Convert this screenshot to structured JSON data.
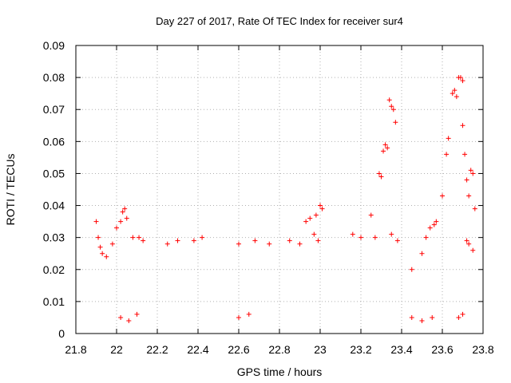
{
  "chart_data": {
    "type": "scatter",
    "title": "Day 227 of 2017, Rate Of TEC Index for receiver sur4",
    "xlabel": "GPS time / hours",
    "ylabel": "ROTI / TECUs",
    "xlim": [
      21.8,
      23.8
    ],
    "ylim": [
      0,
      0.09
    ],
    "xticks": [
      "21.8",
      "22",
      "22.2",
      "22.4",
      "22.6",
      "22.8",
      "23",
      "23.2",
      "23.4",
      "23.6",
      "23.8"
    ],
    "yticks": [
      "0",
      "0.01",
      "0.02",
      "0.03",
      "0.04",
      "0.05",
      "0.06",
      "0.07",
      "0.08",
      "0.09"
    ],
    "grid": true,
    "marker": "plus",
    "color": "#ff0000",
    "series": [
      {
        "points": [
          [
            21.9,
            0.035
          ],
          [
            21.91,
            0.03
          ],
          [
            21.92,
            0.027
          ],
          [
            21.93,
            0.025
          ],
          [
            21.95,
            0.024
          ],
          [
            21.98,
            0.028
          ],
          [
            22.0,
            0.033
          ],
          [
            22.02,
            0.035
          ],
          [
            22.03,
            0.038
          ],
          [
            22.04,
            0.039
          ],
          [
            22.05,
            0.036
          ],
          [
            22.08,
            0.03
          ],
          [
            22.11,
            0.03
          ],
          [
            22.13,
            0.029
          ],
          [
            22.25,
            0.028
          ],
          [
            22.3,
            0.029
          ],
          [
            22.38,
            0.029
          ],
          [
            22.42,
            0.03
          ],
          [
            22.6,
            0.028
          ],
          [
            22.68,
            0.029
          ],
          [
            22.75,
            0.028
          ],
          [
            22.85,
            0.029
          ],
          [
            22.9,
            0.028
          ],
          [
            22.93,
            0.035
          ],
          [
            22.95,
            0.036
          ],
          [
            22.98,
            0.037
          ],
          [
            23.0,
            0.04
          ],
          [
            23.01,
            0.039
          ],
          [
            22.97,
            0.031
          ],
          [
            22.99,
            0.029
          ],
          [
            23.16,
            0.031
          ],
          [
            23.2,
            0.03
          ],
          [
            23.25,
            0.037
          ],
          [
            23.27,
            0.03
          ],
          [
            23.29,
            0.05
          ],
          [
            23.3,
            0.049
          ],
          [
            23.31,
            0.057
          ],
          [
            23.32,
            0.059
          ],
          [
            23.33,
            0.058
          ],
          [
            23.34,
            0.073
          ],
          [
            23.35,
            0.071
          ],
          [
            23.36,
            0.07
          ],
          [
            23.37,
            0.066
          ],
          [
            23.35,
            0.031
          ],
          [
            23.38,
            0.029
          ],
          [
            23.45,
            0.02
          ],
          [
            23.5,
            0.025
          ],
          [
            23.52,
            0.03
          ],
          [
            23.54,
            0.033
          ],
          [
            23.56,
            0.034
          ],
          [
            23.57,
            0.035
          ],
          [
            23.6,
            0.043
          ],
          [
            23.62,
            0.056
          ],
          [
            23.63,
            0.061
          ],
          [
            23.65,
            0.075
          ],
          [
            23.66,
            0.076
          ],
          [
            23.67,
            0.074
          ],
          [
            23.68,
            0.08
          ],
          [
            23.69,
            0.08
          ],
          [
            23.7,
            0.079
          ],
          [
            23.7,
            0.065
          ],
          [
            23.71,
            0.056
          ],
          [
            23.72,
            0.048
          ],
          [
            23.73,
            0.043
          ],
          [
            23.74,
            0.051
          ],
          [
            23.75,
            0.05
          ],
          [
            23.76,
            0.039
          ],
          [
            23.73,
            0.028
          ],
          [
            23.75,
            0.026
          ],
          [
            23.72,
            0.029
          ],
          [
            22.02,
            0.005
          ],
          [
            22.06,
            0.004
          ],
          [
            22.1,
            0.006
          ],
          [
            22.6,
            0.005
          ],
          [
            22.65,
            0.006
          ],
          [
            23.45,
            0.005
          ],
          [
            23.5,
            0.004
          ],
          [
            23.55,
            0.005
          ],
          [
            23.68,
            0.005
          ],
          [
            23.7,
            0.006
          ]
        ]
      }
    ]
  }
}
